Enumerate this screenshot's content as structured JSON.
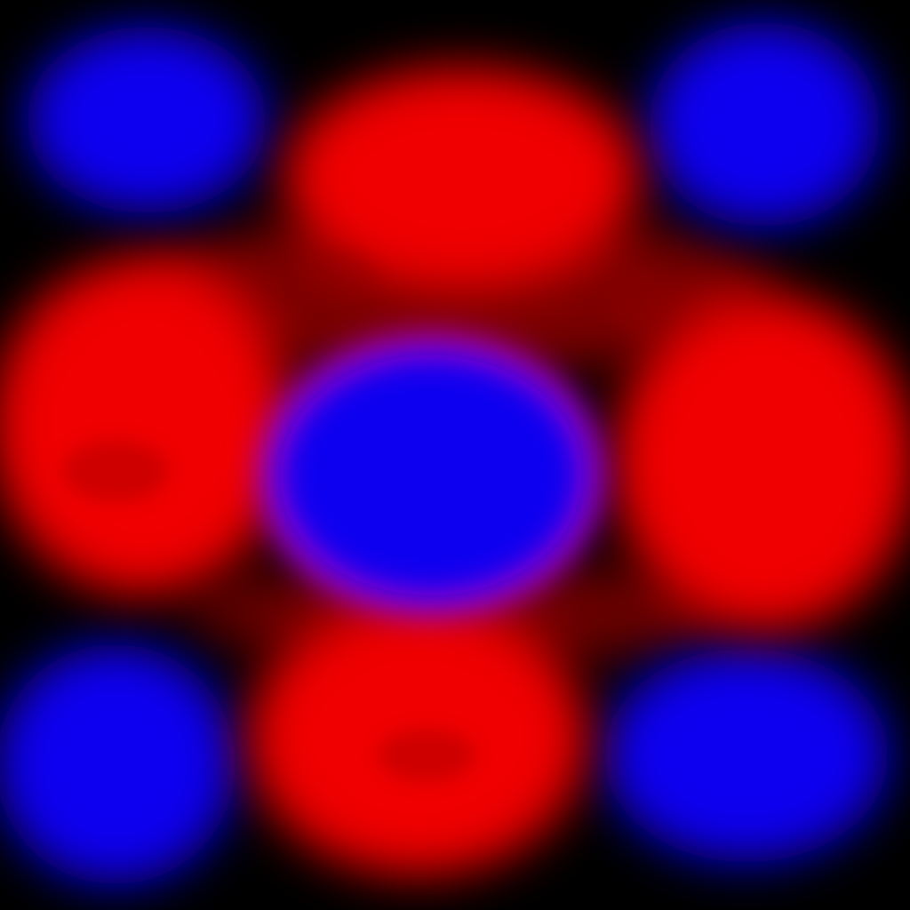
{
  "image": {
    "background_color": "#000000",
    "palette": {
      "red_blob": "#f00004",
      "red_shadow": "#8a0000",
      "blue_blob": "#0a00f0",
      "magenta_edge": "#b000c8"
    },
    "blobs": [
      {
        "name": "blue-blob-top-left",
        "color": "blue_blob"
      },
      {
        "name": "blue-blob-top-right",
        "color": "blue_blob"
      },
      {
        "name": "red-blob-top-center",
        "color": "red_blob"
      },
      {
        "name": "red-blob-left",
        "color": "red_blob"
      },
      {
        "name": "blue-blob-center",
        "color": "blue_blob"
      },
      {
        "name": "red-blob-right",
        "color": "red_blob"
      },
      {
        "name": "blue-blob-bottom-left",
        "color": "blue_blob"
      },
      {
        "name": "red-blob-bottom-center",
        "color": "red_blob"
      },
      {
        "name": "blue-blob-bottom-right",
        "color": "blue_blob"
      }
    ]
  }
}
